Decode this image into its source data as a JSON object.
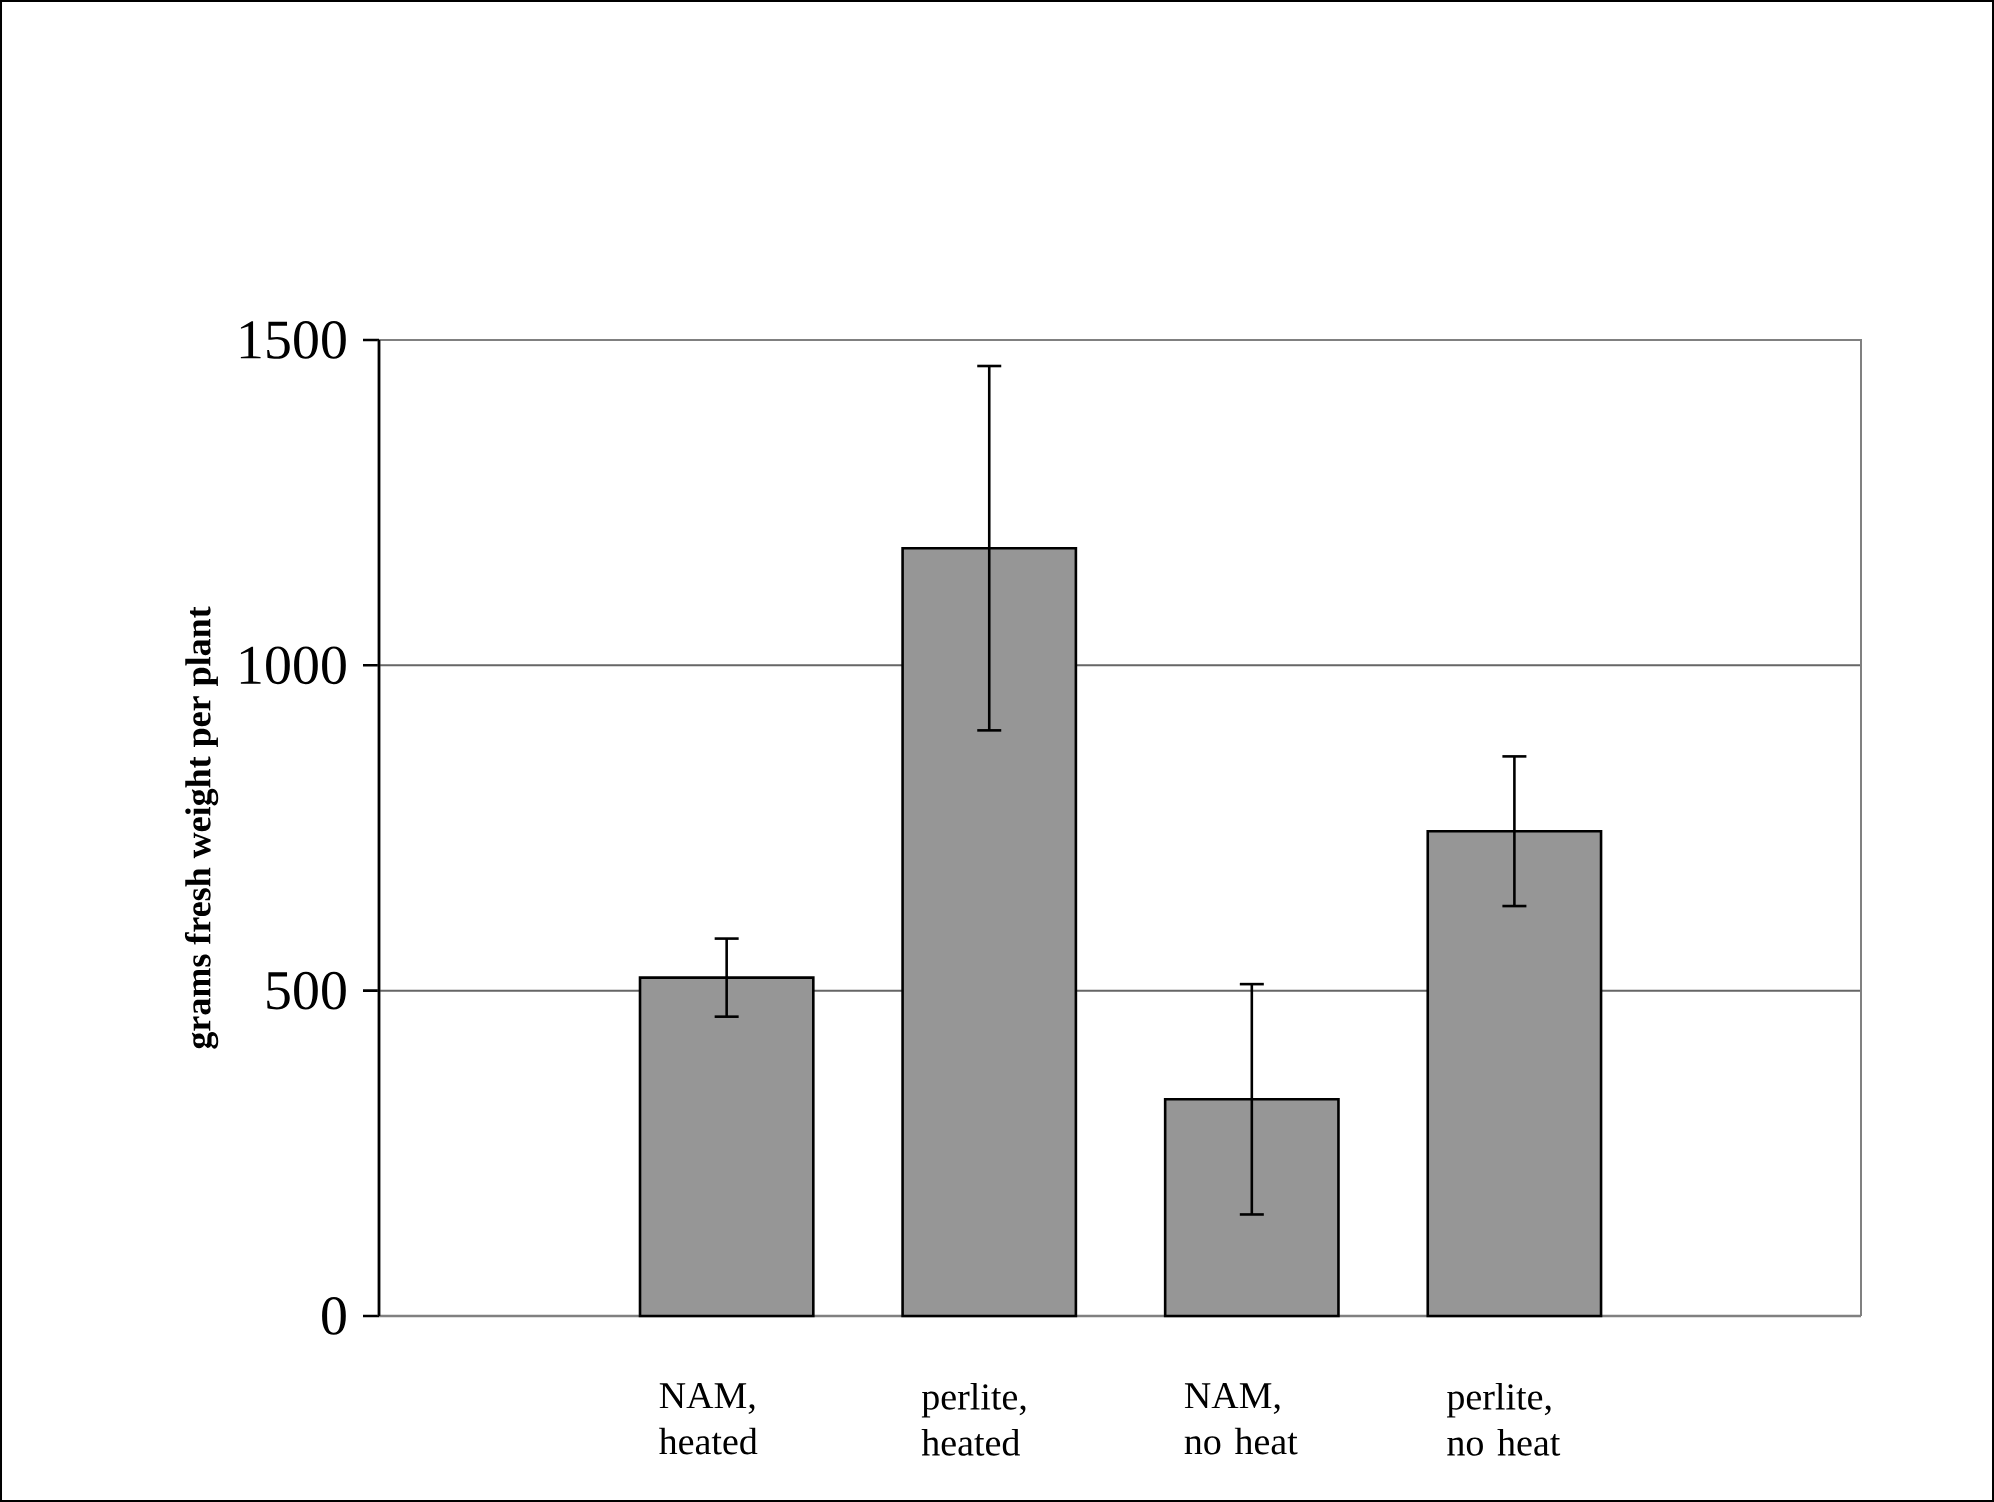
{
  "chart_data": {
    "type": "bar",
    "ylabel": "grams fresh weight per plant",
    "categories": [
      "NAM, heated",
      "perlite, heated",
      "NAM, no heat",
      "perlite, no heat"
    ],
    "values": [
      520,
      1180,
      333,
      745
    ],
    "errors": [
      60,
      280,
      177,
      115
    ],
    "color": "#969696",
    "ylim": [
      0,
      1500
    ],
    "yticks": [
      0,
      500,
      1000,
      1500
    ],
    "grid": "y"
  }
}
